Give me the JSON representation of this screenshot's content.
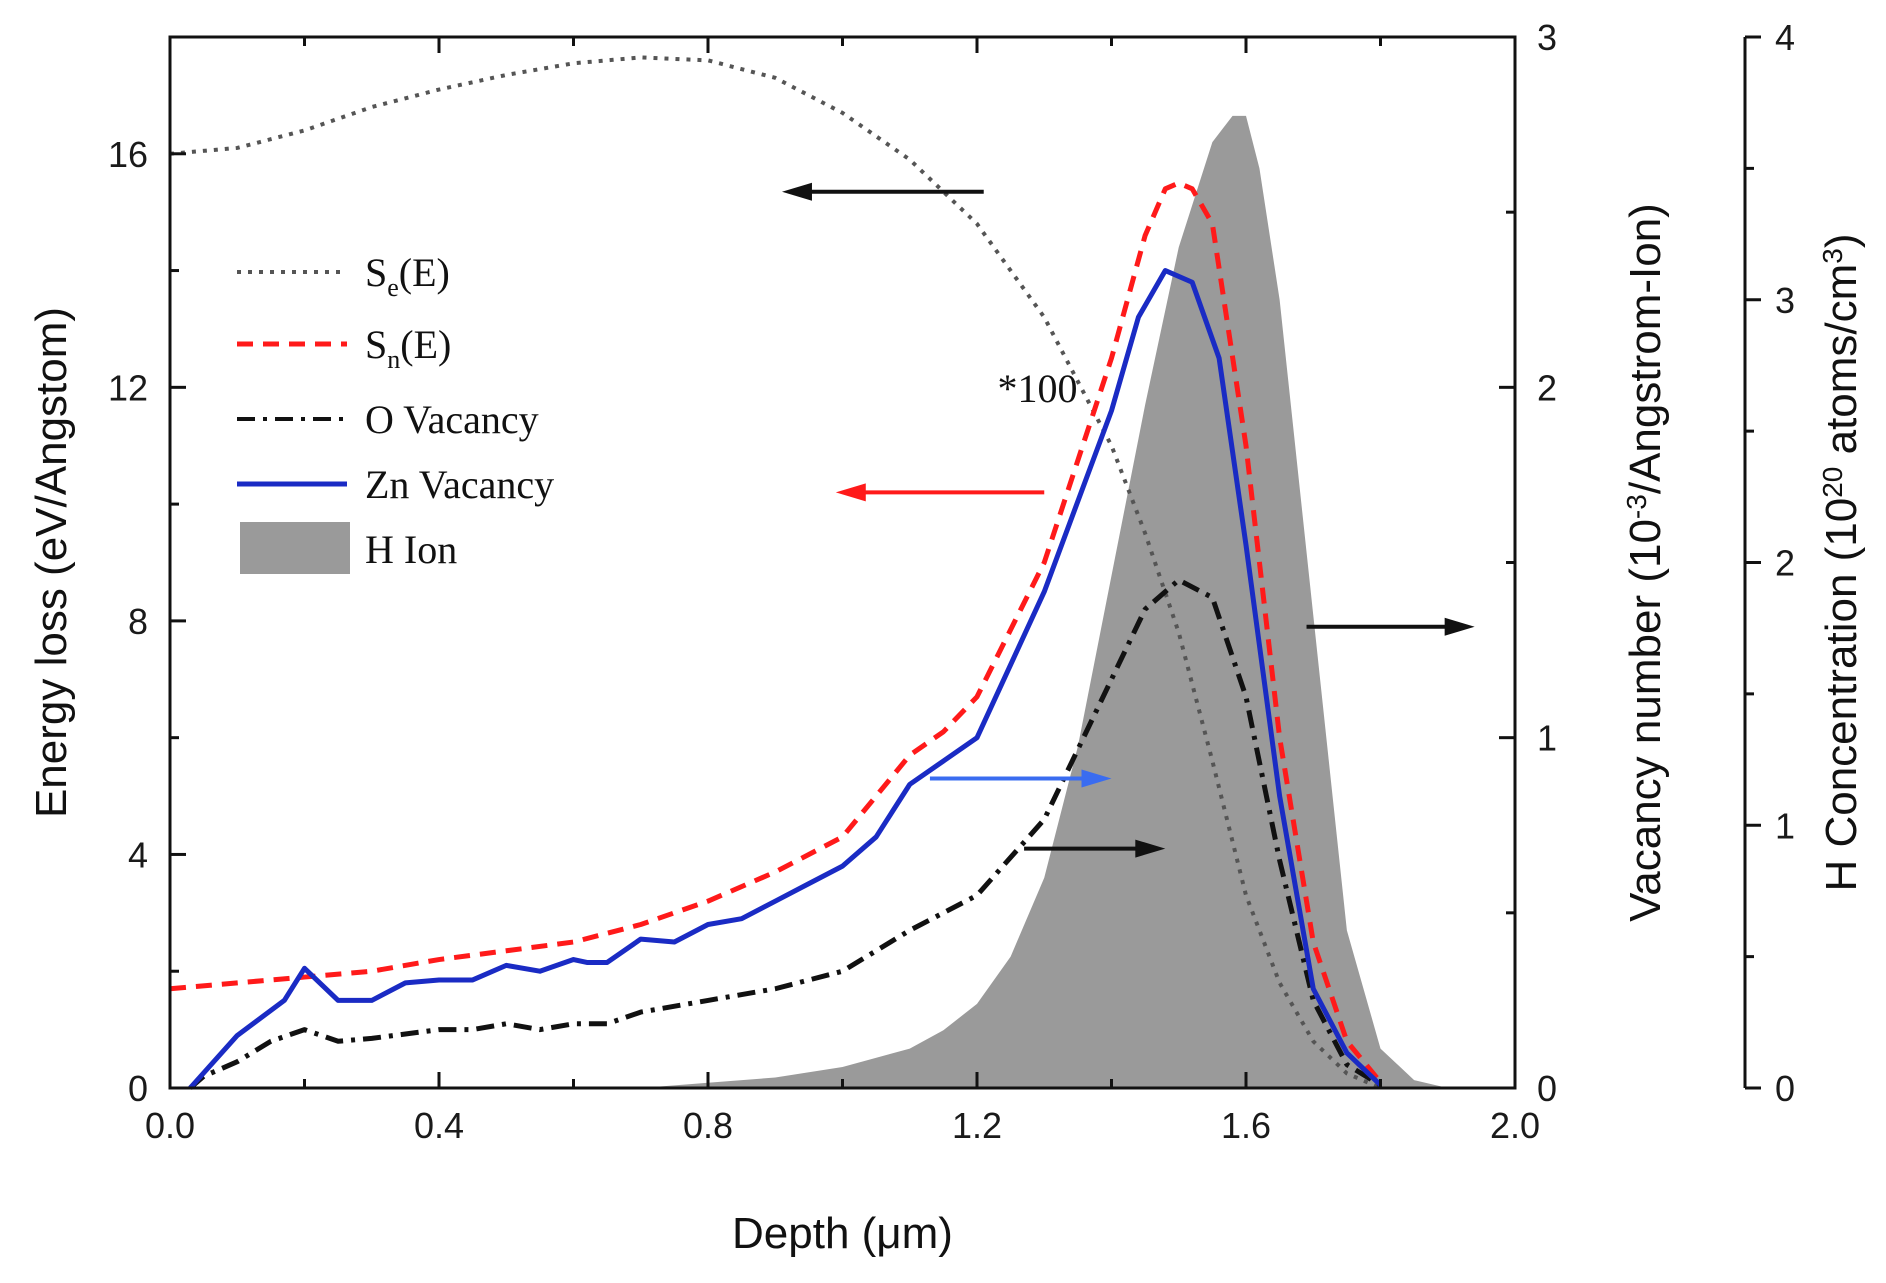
{
  "chart_data": {
    "type": "line",
    "title": "",
    "xlabel": "Depth (μm)",
    "xlim": [
      0,
      2.0
    ],
    "xticks": [
      0.0,
      0.4,
      0.8,
      1.2,
      1.6,
      2.0
    ],
    "xtick_labels": [
      "0.0",
      "0.4",
      "0.8",
      "1.2",
      "1.6",
      "2.0"
    ],
    "axes": {
      "left": {
        "label": "Energy loss (eV/Angstom)",
        "lim": [
          0,
          18
        ],
        "ticks": [
          0,
          4,
          8,
          12,
          16
        ],
        "tick_labels": [
          "0",
          "4",
          "8",
          "12",
          "16"
        ]
      },
      "right1": {
        "label_main": "Vacancy number (10",
        "label_sup": "-3",
        "label_tail": "/Angstrom-Ion)",
        "lim": [
          0,
          3
        ],
        "ticks": [
          0,
          1,
          2,
          3
        ],
        "tick_labels": [
          "0",
          "1",
          "2",
          "3"
        ]
      },
      "right2": {
        "label_main": "H Concentration (10",
        "label_sup": "20",
        "label_mid": " atoms/cm",
        "label_sup2": "3",
        "label_tail": ")",
        "lim": [
          0,
          4
        ],
        "ticks": [
          0,
          1,
          2,
          3,
          4
        ],
        "tick_labels": [
          "0",
          "1",
          "2",
          "3",
          "4"
        ]
      }
    },
    "series": [
      {
        "name": "Se(E)",
        "legend_main": "S",
        "legend_sub": "e",
        "legend_tail": "(E)",
        "axis": "left",
        "style": "dotted",
        "color": "#555555",
        "x": [
          0.0,
          0.1,
          0.2,
          0.3,
          0.4,
          0.5,
          0.6,
          0.7,
          0.8,
          0.9,
          1.0,
          1.1,
          1.2,
          1.3,
          1.4,
          1.45,
          1.5,
          1.55,
          1.6,
          1.65,
          1.7,
          1.75,
          1.8
        ],
        "y": [
          16.0,
          16.1,
          16.4,
          16.8,
          17.1,
          17.35,
          17.55,
          17.65,
          17.6,
          17.3,
          16.7,
          15.9,
          14.8,
          13.2,
          11.0,
          9.5,
          7.8,
          5.6,
          3.3,
          1.8,
          0.8,
          0.25,
          0.0
        ]
      },
      {
        "name": "Sn(E)",
        "legend_main": "S",
        "legend_sub": "n",
        "legend_tail": "(E)",
        "axis": "left",
        "style": "dashed",
        "color": "#ff1a1a",
        "x": [
          0.0,
          0.1,
          0.2,
          0.3,
          0.4,
          0.5,
          0.6,
          0.7,
          0.8,
          0.9,
          1.0,
          1.1,
          1.15,
          1.2,
          1.3,
          1.4,
          1.45,
          1.48,
          1.5,
          1.52,
          1.55,
          1.6,
          1.65,
          1.7,
          1.75,
          1.8
        ],
        "y": [
          1.7,
          1.8,
          1.9,
          2.0,
          2.2,
          2.35,
          2.5,
          2.8,
          3.2,
          3.7,
          4.3,
          5.7,
          6.1,
          6.7,
          9.0,
          12.5,
          14.6,
          15.4,
          15.5,
          15.4,
          14.8,
          11.0,
          6.0,
          2.5,
          0.8,
          0.1
        ]
      },
      {
        "name": "O Vacancy",
        "axis": "left",
        "style": "dashdot",
        "color": "#111111",
        "x": [
          0.03,
          0.05,
          0.1,
          0.15,
          0.2,
          0.25,
          0.3,
          0.4,
          0.45,
          0.5,
          0.55,
          0.6,
          0.65,
          0.7,
          0.8,
          0.9,
          1.0,
          1.1,
          1.2,
          1.3,
          1.4,
          1.45,
          1.5,
          1.55,
          1.6,
          1.65,
          1.7,
          1.75,
          1.8
        ],
        "y": [
          0.0,
          0.2,
          0.45,
          0.8,
          1.0,
          0.8,
          0.85,
          1.0,
          1.0,
          1.1,
          1.0,
          1.1,
          1.1,
          1.3,
          1.5,
          1.7,
          2.0,
          2.7,
          3.3,
          4.6,
          7.0,
          8.2,
          8.7,
          8.4,
          6.7,
          3.9,
          1.5,
          0.4,
          0.05
        ]
      },
      {
        "name": "Zn Vacancy",
        "axis": "left",
        "style": "solid",
        "color": "#1a2bc4",
        "x": [
          0.03,
          0.1,
          0.17,
          0.2,
          0.25,
          0.3,
          0.35,
          0.4,
          0.45,
          0.5,
          0.55,
          0.6,
          0.62,
          0.65,
          0.7,
          0.75,
          0.8,
          0.85,
          0.9,
          0.95,
          1.0,
          1.05,
          1.1,
          1.15,
          1.2,
          1.3,
          1.4,
          1.44,
          1.48,
          1.52,
          1.56,
          1.6,
          1.65,
          1.7,
          1.75,
          1.8
        ],
        "y": [
          0.0,
          0.9,
          1.5,
          2.05,
          1.5,
          1.5,
          1.8,
          1.85,
          1.85,
          2.1,
          2.0,
          2.2,
          2.15,
          2.15,
          2.55,
          2.5,
          2.8,
          2.9,
          3.2,
          3.5,
          3.8,
          4.3,
          5.2,
          5.6,
          6.0,
          8.5,
          11.6,
          13.2,
          14.0,
          13.8,
          12.5,
          9.3,
          5.0,
          1.7,
          0.6,
          0.05
        ]
      },
      {
        "name": "H Ion",
        "axis": "right2",
        "style": "area",
        "color": "#9a9a9a",
        "x": [
          0.7,
          0.8,
          0.9,
          1.0,
          1.1,
          1.15,
          1.2,
          1.25,
          1.3,
          1.35,
          1.4,
          1.45,
          1.5,
          1.55,
          1.58,
          1.6,
          1.62,
          1.65,
          1.7,
          1.75,
          1.8,
          1.85,
          1.9,
          2.0
        ],
        "y": [
          0.0,
          0.02,
          0.04,
          0.08,
          0.15,
          0.22,
          0.32,
          0.5,
          0.8,
          1.3,
          1.95,
          2.6,
          3.2,
          3.6,
          3.7,
          3.7,
          3.5,
          3.0,
          1.8,
          0.6,
          0.15,
          0.03,
          0.0,
          0.0
        ]
      }
    ],
    "annotations": [
      {
        "text": "*100",
        "x": 1.29,
        "y": 11.75,
        "axis": "left"
      }
    ],
    "arrows": [
      {
        "color": "#111111",
        "from": [
          1.21,
          15.35
        ],
        "to": [
          0.91,
          15.35
        ],
        "axis": "left"
      },
      {
        "color": "#ff1a1a",
        "from": [
          1.3,
          10.2
        ],
        "to": [
          0.99,
          10.2
        ],
        "axis": "left"
      },
      {
        "color": "#3a6cf0",
        "from": [
          1.13,
          5.3
        ],
        "to": [
          1.4,
          5.3
        ],
        "axis": "left"
      },
      {
        "color": "#111111",
        "from": [
          1.27,
          4.1
        ],
        "to": [
          1.48,
          4.1
        ],
        "axis": "left"
      },
      {
        "color": "#111111",
        "from": [
          1.69,
          7.9
        ],
        "to": [
          1.94,
          7.9
        ],
        "axis": "left"
      }
    ],
    "legend_position": "upper-left"
  }
}
